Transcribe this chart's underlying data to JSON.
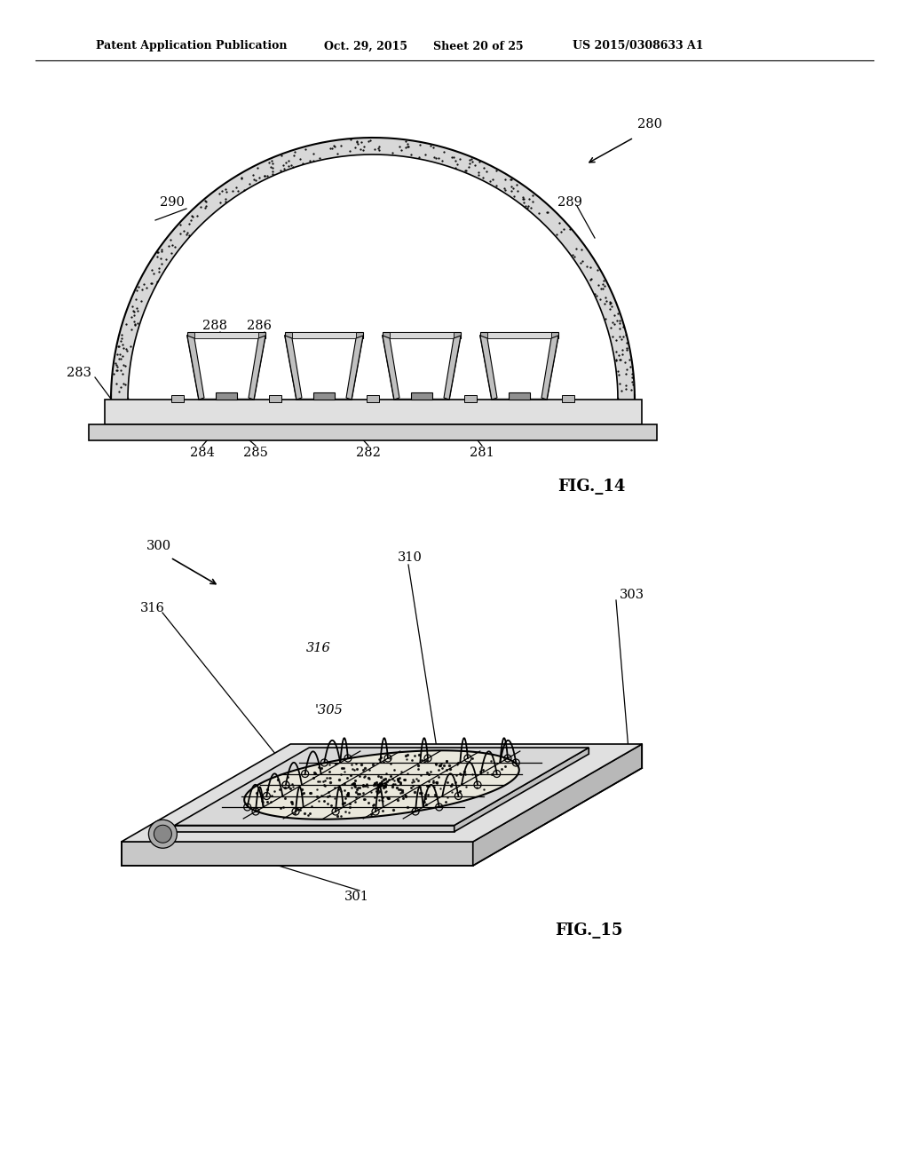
{
  "bg_color": "#ffffff",
  "header_text": "Patent Application Publication",
  "header_date": "Oct. 29, 2015",
  "header_sheet": "Sheet 20 of 25",
  "header_patent": "US 2015/0308633 A1",
  "fig14_label": "FIG._14",
  "fig15_label": "FIG._15"
}
